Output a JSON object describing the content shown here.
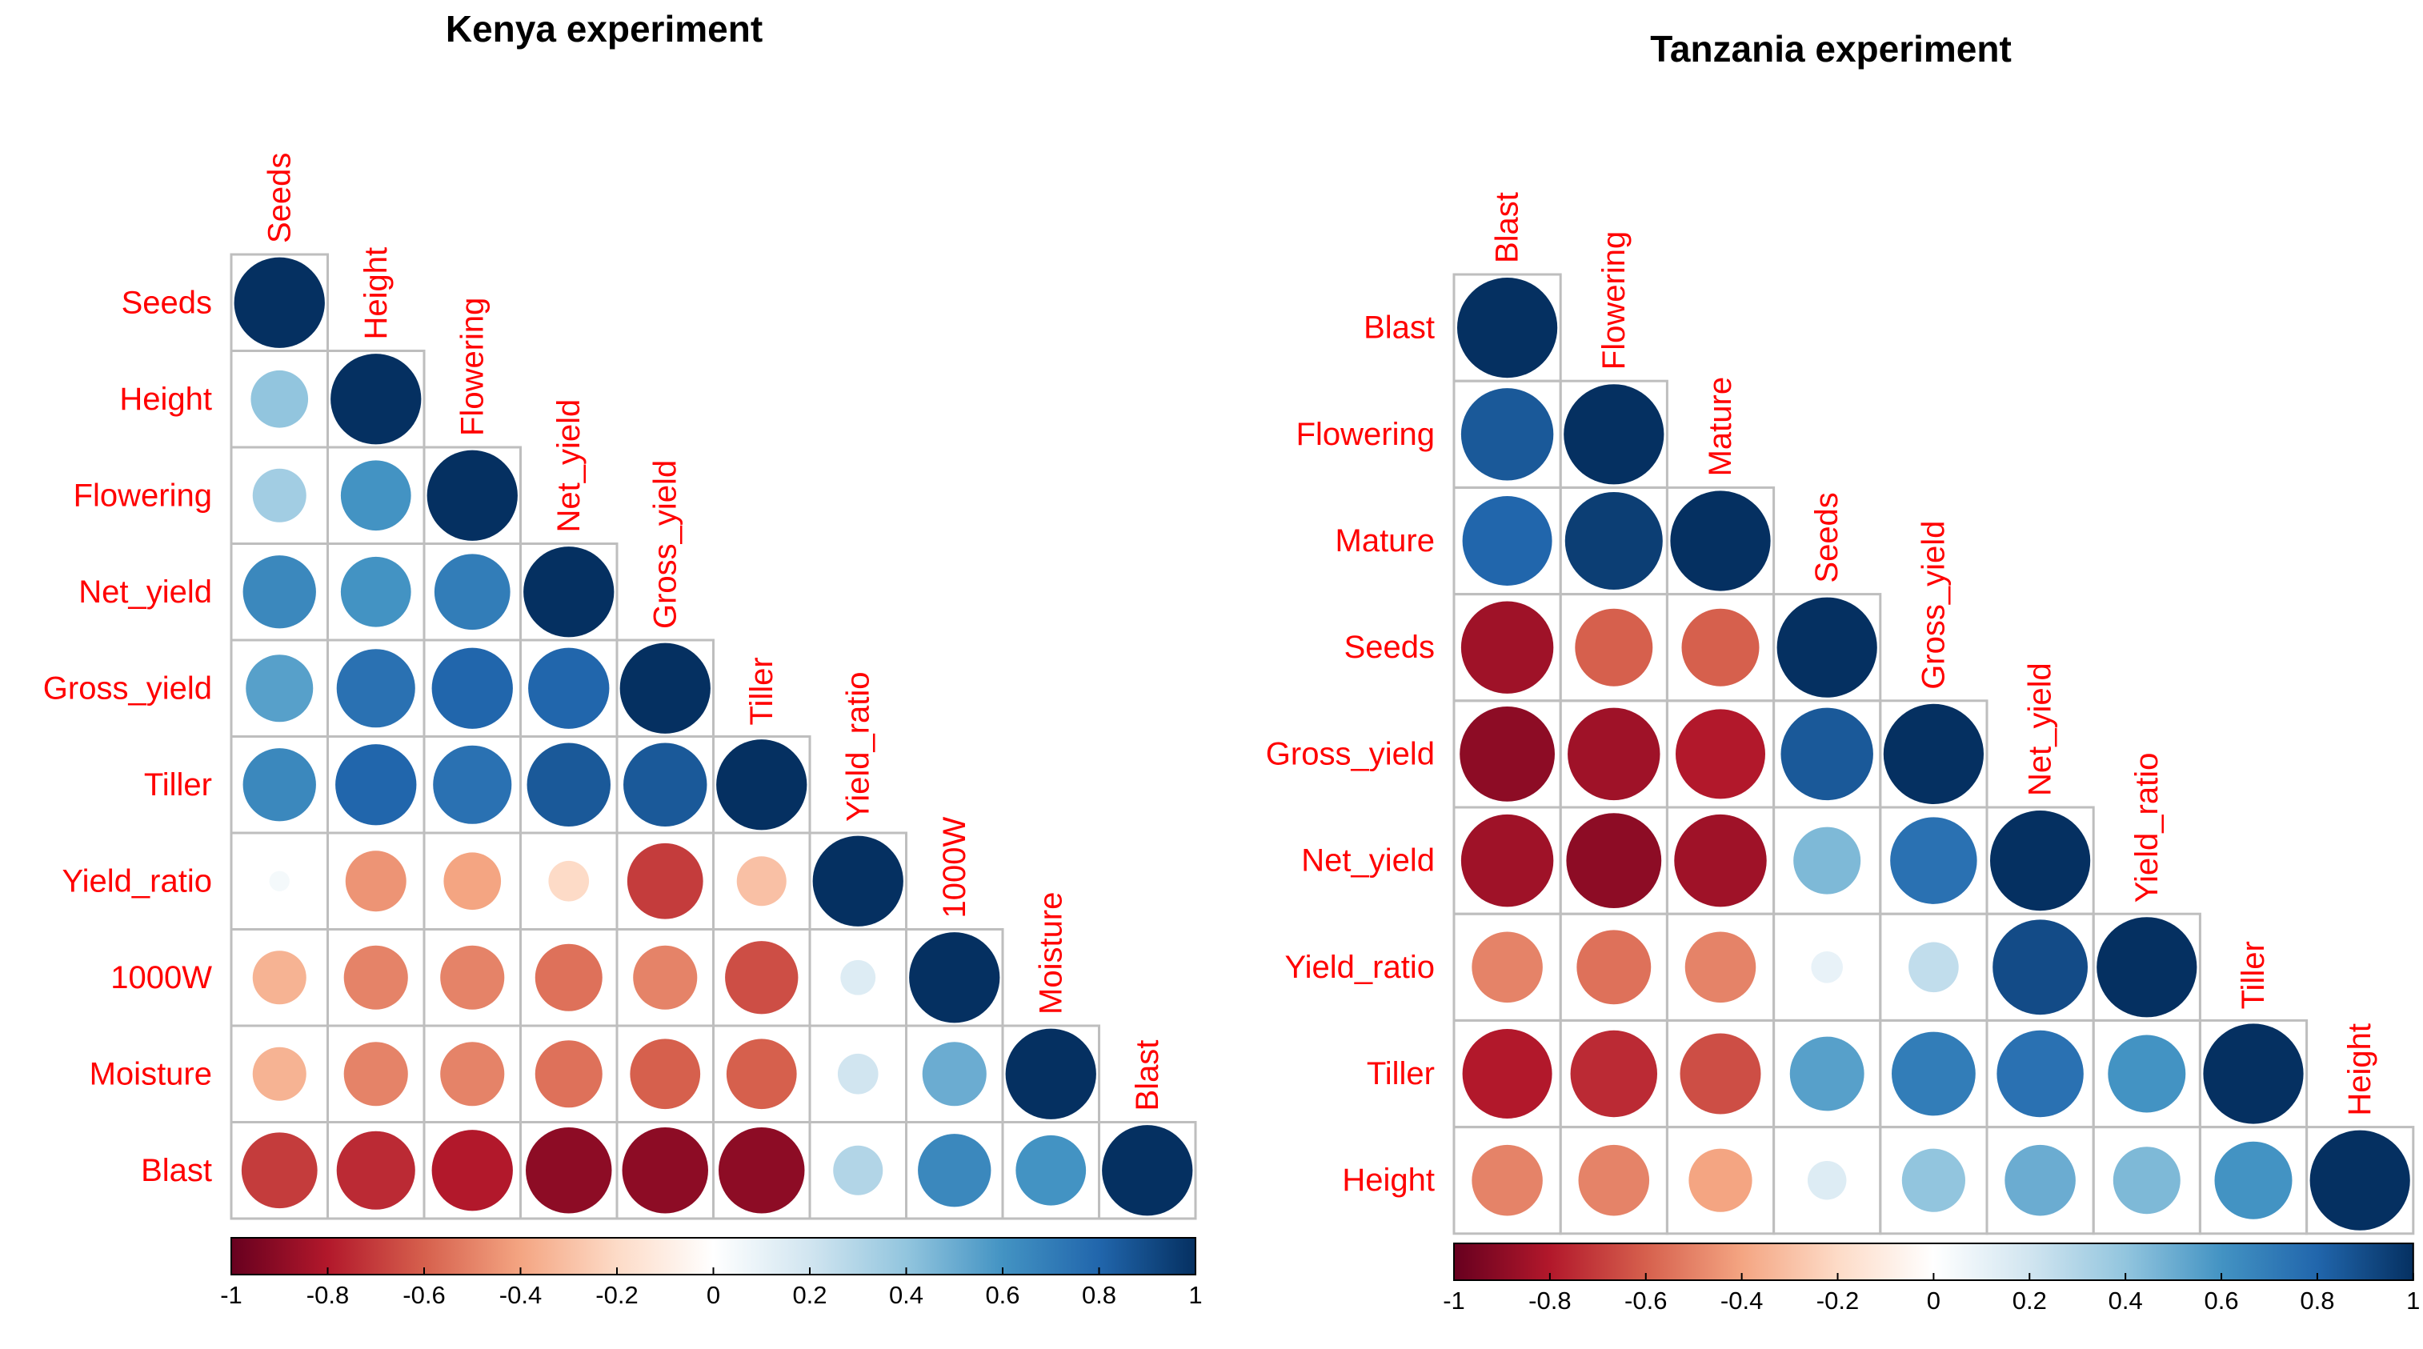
{
  "colors": {
    "label": "#ff0000",
    "border": "#bebebe",
    "scale": [
      "#67001f",
      "#b2182b",
      "#d6604d",
      "#f4a582",
      "#fddbc7",
      "#ffffff",
      "#d1e5f0",
      "#92c5de",
      "#4393c3",
      "#2166ac",
      "#053061"
    ]
  },
  "chart_data": [
    {
      "type": "heatmap",
      "subtype": "correlation-circle-lower-triangle",
      "title": "Kenya experiment",
      "variables": [
        "Seeds",
        "Height",
        "Flowering",
        "Net_yield",
        "Gross_yield",
        "Tiller",
        "Yield_ratio",
        "1000W",
        "Moisture",
        "Blast"
      ],
      "matrix": [
        [
          1
        ],
        [
          0.4,
          1
        ],
        [
          0.35,
          0.6,
          1
        ],
        [
          0.65,
          0.6,
          0.7,
          1
        ],
        [
          0.55,
          0.75,
          0.8,
          0.8,
          1
        ],
        [
          0.65,
          0.8,
          0.75,
          0.85,
          0.85,
          1
        ],
        [
          0.05,
          -0.45,
          -0.4,
          -0.2,
          -0.7,
          -0.3,
          1
        ],
        [
          -0.35,
          -0.5,
          -0.5,
          -0.55,
          -0.5,
          -0.65,
          0.15,
          1
        ],
        [
          -0.35,
          -0.5,
          -0.5,
          -0.55,
          -0.6,
          -0.6,
          0.2,
          0.5,
          1
        ],
        [
          -0.7,
          -0.75,
          -0.8,
          -0.9,
          -0.9,
          -0.9,
          0.3,
          0.65,
          0.6,
          1
        ]
      ],
      "colorbar": {
        "range": [
          -1,
          1
        ],
        "ticks": [
          "-1",
          "-0.8",
          "-0.6",
          "-0.4",
          "-0.2",
          "0",
          "0.2",
          "0.4",
          "0.6",
          "0.8",
          "1"
        ]
      }
    },
    {
      "type": "heatmap",
      "subtype": "correlation-circle-lower-triangle",
      "title": "Tanzania experiment",
      "variables": [
        "Blast",
        "Flowering",
        "Mature",
        "Seeds",
        "Gross_yield",
        "Net_yield",
        "Yield_ratio",
        "Tiller",
        "Height"
      ],
      "matrix": [
        [
          1
        ],
        [
          0.85,
          1
        ],
        [
          0.8,
          0.95,
          1
        ],
        [
          -0.85,
          -0.6,
          -0.6,
          1
        ],
        [
          -0.9,
          -0.85,
          -0.8,
          0.85,
          1
        ],
        [
          -0.85,
          -0.9,
          -0.85,
          0.45,
          0.75,
          1
        ],
        [
          -0.5,
          -0.55,
          -0.5,
          0.1,
          0.25,
          0.9,
          1
        ],
        [
          -0.8,
          -0.75,
          -0.65,
          0.55,
          0.7,
          0.75,
          0.6,
          1
        ],
        [
          -0.5,
          -0.5,
          -0.4,
          0.15,
          0.4,
          0.5,
          0.45,
          0.6,
          1
        ]
      ],
      "colorbar": {
        "range": [
          -1,
          1
        ],
        "ticks": [
          "-1",
          "-0.8",
          "-0.6",
          "-0.4",
          "-0.2",
          "0",
          "0.2",
          "0.4",
          "0.6",
          "0.8",
          "1"
        ]
      }
    }
  ]
}
